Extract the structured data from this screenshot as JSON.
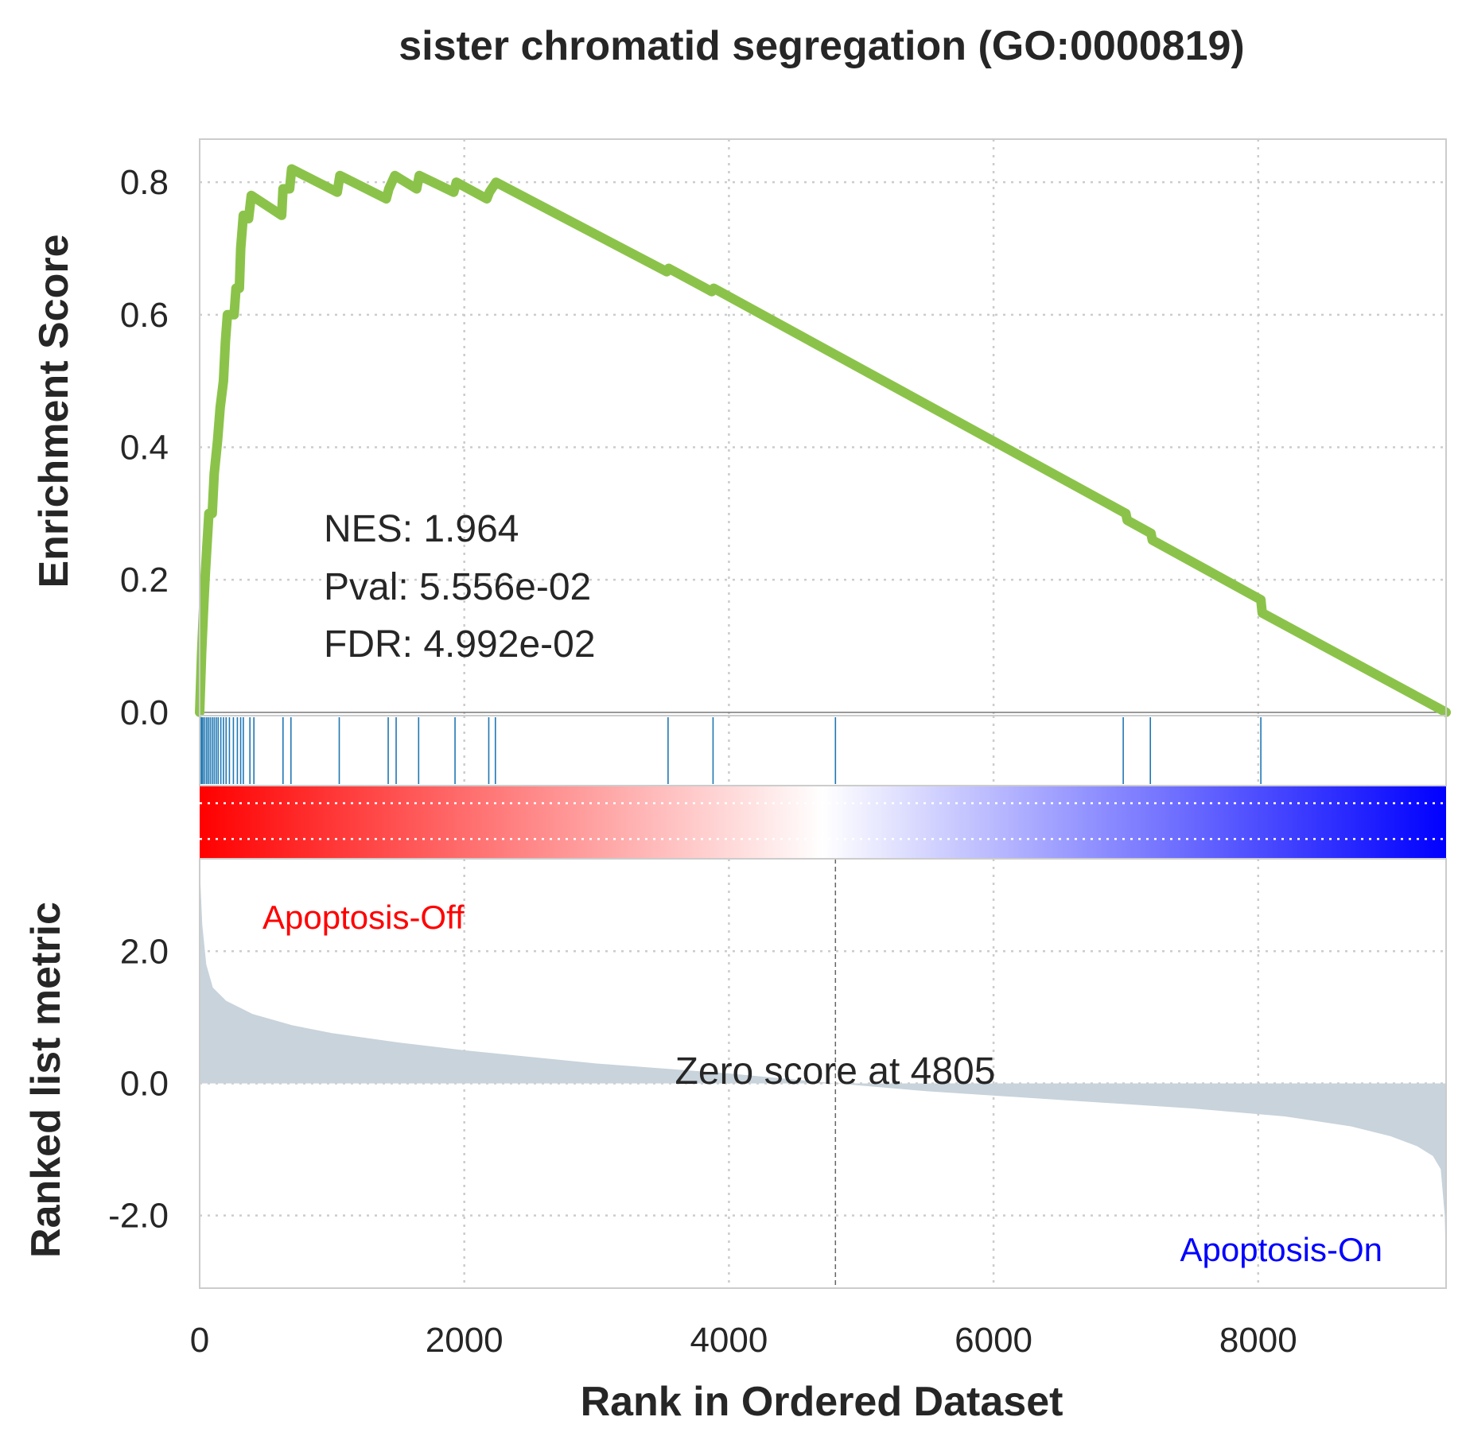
{
  "chart_data": {
    "type": "line",
    "title": "sister chromatid segregation (GO:0000819)",
    "xlabel": "Rank in Ordered Dataset",
    "xlim": [
      0,
      9420
    ],
    "x_ticks": [
      "0",
      "2000",
      "4000",
      "6000",
      "8000"
    ],
    "grid": true,
    "enrichment": {
      "ylabel": "Enrichment Score",
      "ylim": [
        -0.005,
        0.865
      ],
      "y_ticks": [
        "0.0",
        "0.2",
        "0.4",
        "0.6",
        "0.8"
      ],
      "line_color": "#8bc34a",
      "points": [
        [
          0,
          0.0
        ],
        [
          15,
          0.09
        ],
        [
          28,
          0.15
        ],
        [
          40,
          0.2
        ],
        [
          55,
          0.25
        ],
        [
          70,
          0.3
        ],
        [
          95,
          0.3
        ],
        [
          110,
          0.36
        ],
        [
          135,
          0.41
        ],
        [
          155,
          0.46
        ],
        [
          180,
          0.5
        ],
        [
          195,
          0.56
        ],
        [
          210,
          0.6
        ],
        [
          260,
          0.6
        ],
        [
          275,
          0.64
        ],
        [
          300,
          0.64
        ],
        [
          310,
          0.7
        ],
        [
          330,
          0.75
        ],
        [
          370,
          0.745
        ],
        [
          390,
          0.78
        ],
        [
          620,
          0.75
        ],
        [
          630,
          0.79
        ],
        [
          680,
          0.79
        ],
        [
          695,
          0.82
        ],
        [
          1040,
          0.785
        ],
        [
          1060,
          0.81
        ],
        [
          1410,
          0.775
        ],
        [
          1430,
          0.79
        ],
        [
          1475,
          0.81
        ],
        [
          1640,
          0.79
        ],
        [
          1660,
          0.81
        ],
        [
          1920,
          0.785
        ],
        [
          1940,
          0.8
        ],
        [
          2170,
          0.775
        ],
        [
          2190,
          0.785
        ],
        [
          2240,
          0.8
        ],
        [
          3530,
          0.665
        ],
        [
          3545,
          0.67
        ],
        [
          3870,
          0.635
        ],
        [
          3885,
          0.64
        ],
        [
          7000,
          0.3
        ],
        [
          7010,
          0.29
        ],
        [
          7190,
          0.27
        ],
        [
          7200,
          0.26
        ],
        [
          8020,
          0.17
        ],
        [
          8030,
          0.15
        ],
        [
          9420,
          0.0
        ]
      ]
    },
    "hits": [
      5,
      15,
      25,
      38,
      52,
      65,
      80,
      95,
      110,
      125,
      140,
      160,
      180,
      200,
      225,
      255,
      285,
      310,
      330,
      380,
      410,
      630,
      690,
      1055,
      1425,
      1485,
      1655,
      1930,
      2185,
      2235,
      3540,
      3880,
      4805,
      6980,
      7185,
      8020
    ],
    "hits_color": "#1f77b4",
    "ranked_metric": {
      "ylabel": "Ranked list metric",
      "ylim": [
        -3.1,
        3.4
      ],
      "y_ticks": [
        "2.0",
        "0.0",
        "-2.0"
      ],
      "fill_color": "#c8d3db",
      "points": [
        [
          0,
          3.3
        ],
        [
          20,
          2.4
        ],
        [
          50,
          1.8
        ],
        [
          100,
          1.45
        ],
        [
          200,
          1.25
        ],
        [
          400,
          1.05
        ],
        [
          700,
          0.88
        ],
        [
          1000,
          0.76
        ],
        [
          1500,
          0.62
        ],
        [
          2000,
          0.5
        ],
        [
          3000,
          0.3
        ],
        [
          4000,
          0.15
        ],
        [
          4805,
          0.0
        ],
        [
          5500,
          -0.12
        ],
        [
          6500,
          -0.25
        ],
        [
          7500,
          -0.38
        ],
        [
          8200,
          -0.5
        ],
        [
          8700,
          -0.65
        ],
        [
          9000,
          -0.8
        ],
        [
          9200,
          -0.95
        ],
        [
          9320,
          -1.1
        ],
        [
          9380,
          -1.3
        ],
        [
          9410,
          -2.0
        ],
        [
          9420,
          -2.8
        ]
      ]
    },
    "colorbar": {
      "from": "#ff0000",
      "mid": "#ffffff",
      "to": "#0000ff"
    },
    "annotations": {
      "nes": "NES: 1.964",
      "pval": "Pval: 5.556e-02",
      "fdr": "FDR: 4.992e-02",
      "zero_score": "Zero score at 4805",
      "zero_rank": 4805,
      "pos_label": "Apoptosis-Off",
      "pos_color": "#ff0000",
      "neg_label": "Apoptosis-On",
      "neg_color": "#0000ff"
    }
  }
}
